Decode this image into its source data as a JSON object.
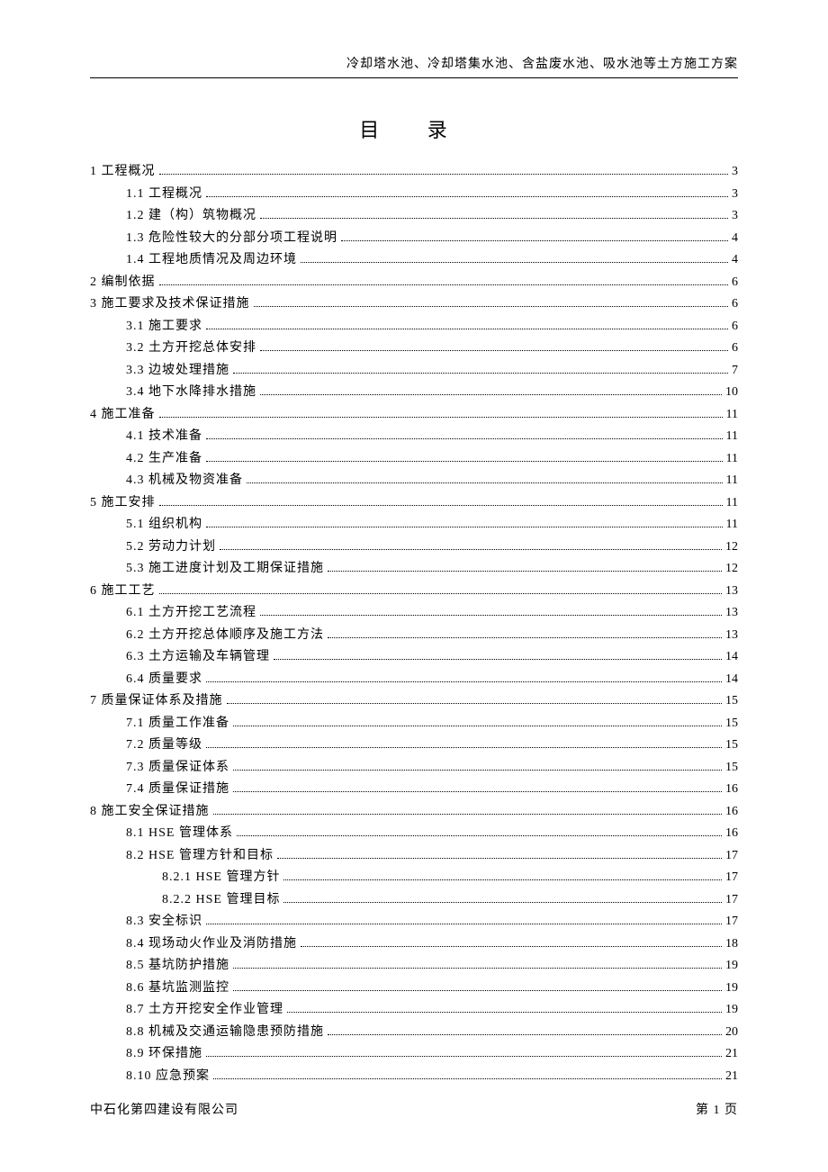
{
  "header": {
    "title": "冷却塔水池、冷却塔集水池、含盐废水池、吸水池等土方施工方案"
  },
  "toc": {
    "title": "目 录",
    "entries": [
      {
        "label": "1 工程概况",
        "page": "3",
        "indent": 0
      },
      {
        "label": "1.1 工程概况",
        "page": "3",
        "indent": 1
      },
      {
        "label": "1.2 建（构）筑物概况",
        "page": "3",
        "indent": 1
      },
      {
        "label": "1.3 危险性较大的分部分项工程说明",
        "page": "4",
        "indent": 1
      },
      {
        "label": "1.4 工程地质情况及周边环境",
        "page": "4",
        "indent": 1
      },
      {
        "label": "2 编制依据",
        "page": "6",
        "indent": 0
      },
      {
        "label": "3 施工要求及技术保证措施",
        "page": "6",
        "indent": 0
      },
      {
        "label": "3.1 施工要求",
        "page": "6",
        "indent": 1
      },
      {
        "label": "3.2 土方开挖总体安排",
        "page": "6",
        "indent": 1
      },
      {
        "label": "3.3 边坡处理措施",
        "page": "7",
        "indent": 1
      },
      {
        "label": "3.4 地下水降排水措施",
        "page": "10",
        "indent": 1
      },
      {
        "label": "4 施工准备",
        "page": "11",
        "indent": 0
      },
      {
        "label": "4.1 技术准备",
        "page": "11",
        "indent": 1
      },
      {
        "label": "4.2 生产准备",
        "page": "11",
        "indent": 1
      },
      {
        "label": "4.3 机械及物资准备",
        "page": "11",
        "indent": 1
      },
      {
        "label": "5 施工安排",
        "page": "11",
        "indent": 0
      },
      {
        "label": "5.1 组织机构",
        "page": "11",
        "indent": 1
      },
      {
        "label": "5.2 劳动力计划",
        "page": "12",
        "indent": 1
      },
      {
        "label": "5.3 施工进度计划及工期保证措施",
        "page": "12",
        "indent": 1
      },
      {
        "label": "6 施工工艺",
        "page": "13",
        "indent": 0
      },
      {
        "label": "6.1 土方开挖工艺流程",
        "page": "13",
        "indent": 1
      },
      {
        "label": "6.2 土方开挖总体顺序及施工方法",
        "page": "13",
        "indent": 1
      },
      {
        "label": "6.3 土方运输及车辆管理",
        "page": "14",
        "indent": 1
      },
      {
        "label": "6.4 质量要求",
        "page": "14",
        "indent": 1
      },
      {
        "label": "7 质量保证体系及措施",
        "page": "15",
        "indent": 0
      },
      {
        "label": "7.1 质量工作准备",
        "page": "15",
        "indent": 1
      },
      {
        "label": "7.2 质量等级",
        "page": "15",
        "indent": 1
      },
      {
        "label": "7.3 质量保证体系",
        "page": "15",
        "indent": 1
      },
      {
        "label": "7.4 质量保证措施",
        "page": "16",
        "indent": 1
      },
      {
        "label": "8 施工安全保证措施",
        "page": "16",
        "indent": 0
      },
      {
        "label": "8.1 HSE 管理体系",
        "page": "16",
        "indent": 1
      },
      {
        "label": "8.2 HSE 管理方针和目标",
        "page": "17",
        "indent": 1
      },
      {
        "label": "8.2.1 HSE 管理方针",
        "page": "17",
        "indent": 2
      },
      {
        "label": "8.2.2 HSE 管理目标",
        "page": "17",
        "indent": 2
      },
      {
        "label": "8.3 安全标识",
        "page": "17",
        "indent": 1
      },
      {
        "label": "8.4 现场动火作业及消防措施",
        "page": "18",
        "indent": 1
      },
      {
        "label": "8.5 基坑防护措施",
        "page": "19",
        "indent": 1
      },
      {
        "label": "8.6 基坑监测监控",
        "page": "19",
        "indent": 1
      },
      {
        "label": "8.7 土方开挖安全作业管理",
        "page": "19",
        "indent": 1
      },
      {
        "label": "8.8 机械及交通运输隐患预防措施",
        "page": "20",
        "indent": 1
      },
      {
        "label": "8.9 环保措施",
        "page": "21",
        "indent": 1
      },
      {
        "label": "8.10 应急预案",
        "page": "21",
        "indent": 1
      }
    ]
  },
  "footer": {
    "company": "中石化第四建设有限公司",
    "page_indicator": "第 1 页"
  }
}
